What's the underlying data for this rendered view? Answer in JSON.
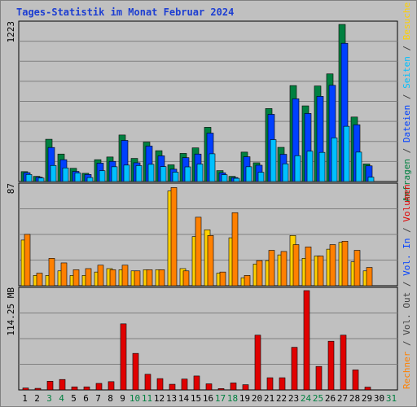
{
  "chart_data": {
    "type": "bar",
    "title": "Tages-Statistik im Monat Februar 2024",
    "days": [
      "1",
      "2",
      "3",
      "4",
      "5",
      "6",
      "7",
      "8",
      "9",
      "10",
      "11",
      "12",
      "13",
      "14",
      "15",
      "16",
      "17",
      "18",
      "19",
      "20",
      "21",
      "22",
      "23",
      "24",
      "25",
      "26",
      "27",
      "28",
      "29",
      "30",
      "31"
    ],
    "weekend_days": [
      "3",
      "4",
      "10",
      "11",
      "17",
      "18",
      "24",
      "25",
      "31"
    ],
    "panels": [
      {
        "id": "top",
        "ymax_label": "1223",
        "ymax": 1223,
        "right_label": [
          {
            "text": "Anfragen",
            "color": "#008040"
          },
          {
            "text": " / ",
            "color": "#404040"
          },
          {
            "text": "Dateien",
            "color": "#0040ff"
          },
          {
            "text": " / ",
            "color": "#404040"
          },
          {
            "text": "Seiten",
            "color": "#00c0ff"
          },
          {
            "text": " / ",
            "color": "#404040"
          },
          {
            "text": "Besuche",
            "color": "#ffd000"
          }
        ],
        "series": [
          {
            "name": "Anfragen",
            "color": "#008040",
            "values": [
              77,
              40,
              329,
              214,
              103,
              64,
              170,
              191,
              362,
              180,
              307,
              240,
              130,
              219,
              262,
              422,
              85,
              40,
              229,
              146,
              568,
              266,
              747,
              589,
              744,
              838,
              1223,
              502,
              137,
              0,
              0
            ]
          },
          {
            "name": "Dateien",
            "color": "#0040ff",
            "values": [
              69,
              34,
              265,
              170,
              79,
              55,
              143,
              157,
              320,
              146,
              276,
              200,
              96,
              186,
              214,
              377,
              68,
              31,
              193,
              127,
              523,
              212,
              644,
              530,
              663,
              749,
              1076,
              442,
              122,
              0,
              0
            ]
          },
          {
            "name": "Seiten",
            "color": "#00c0ff",
            "values": [
              55,
              27,
              125,
              106,
              67,
              31,
              84,
              115,
              128,
              124,
              134,
              116,
              73,
              114,
              136,
              216,
              53,
              25,
              115,
              72,
              326,
              138,
              201,
              236,
              227,
              340,
              430,
              229,
              34,
              0,
              0
            ]
          }
        ]
      },
      {
        "id": "middle",
        "ymax_label": "87",
        "ymax": 87,
        "right_label": [
          {
            "text": "Rechner",
            "color": "#ff8000"
          },
          {
            "text": " / ",
            "color": "#404040"
          },
          {
            "text": "Vol. Out",
            "color": "#404040"
          },
          {
            "text": " / ",
            "color": "#404040"
          },
          {
            "text": "Vol. In",
            "color": "#0040ff"
          },
          {
            "text": " / ",
            "color": "#404040"
          },
          {
            "text": "Volumen",
            "color": "#e00000"
          }
        ],
        "series": [
          {
            "name": "Besuche",
            "color": "#ffd000",
            "values": [
              40,
              9,
              9,
              13,
              9,
              9,
              12,
              15,
              14,
              13,
              14,
              14,
              83,
              15,
              43,
              49,
              11,
              42,
              7,
              19,
              22,
              27,
              44,
              24,
              26,
              32,
              38,
              21,
              13,
              0,
              0
            ]
          },
          {
            "name": "Rechner",
            "color": "#ff8000",
            "values": [
              45,
              11,
              24,
              20,
              14,
              15,
              18,
              14,
              18,
              13,
              14,
              14,
              86,
              13,
              60,
              44,
              12,
              64,
              9,
              22,
              31,
              30,
              36,
              34,
              26,
              36,
              39,
              31,
              16,
              0,
              0
            ]
          }
        ]
      },
      {
        "id": "bottom",
        "ymax_label": "114.25 MB",
        "ymax": 114.25,
        "series": [
          {
            "name": "Volumen",
            "color": "#e00000",
            "values": [
              2.2,
              1.8,
              10,
              12,
              3.5,
              3.5,
              7.5,
              9.5,
              76,
              42,
              18,
              13,
              6.5,
              12.5,
              16,
              7,
              1.5,
              8,
              6,
              63,
              14,
              14,
              49,
              114.25,
              27,
              56,
              63,
              23,
              3.2,
              0,
              0
            ]
          }
        ]
      }
    ]
  }
}
